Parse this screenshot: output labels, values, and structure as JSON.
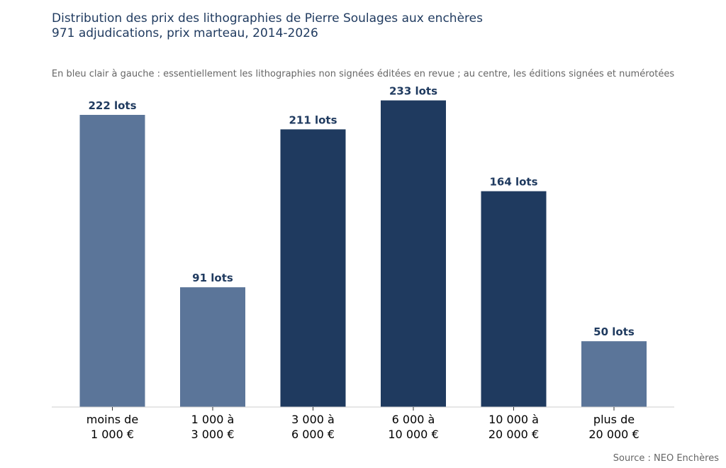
{
  "chart_data": {
    "type": "bar",
    "title_lines": [
      "Distribution des prix des lithographies de Pierre Soulages aux enchères",
      "971 adjudications, prix marteau, 2014-2026"
    ],
    "annotation": "En bleu clair à gauche : essentiellement les lithographies non signées éditées en revue ; au centre, les éditions signées et numérotées",
    "categories": [
      [
        "moins de",
        "1 000 €"
      ],
      [
        "1 000 à",
        "3 000 €"
      ],
      [
        "3 000 à",
        "6 000 €"
      ],
      [
        "6 000 à",
        "10 000 €"
      ],
      [
        "10 000 à",
        "20 000 €"
      ],
      [
        "plus de",
        "20 000 €"
      ]
    ],
    "values": [
      222,
      91,
      211,
      233,
      164,
      50
    ],
    "value_labels": [
      "222 lots",
      "91 lots",
      "211 lots",
      "233 lots",
      "164 lots",
      "50 lots"
    ],
    "bar_colors": [
      "#5b7599",
      "#5b7599",
      "#1f3a5f",
      "#1f3a5f",
      "#1f3a5f",
      "#5b7599"
    ],
    "label_color": "#1f3a5f",
    "ylim": [
      0,
      245
    ],
    "grid": false,
    "source": "Source : NEO Enchères"
  }
}
